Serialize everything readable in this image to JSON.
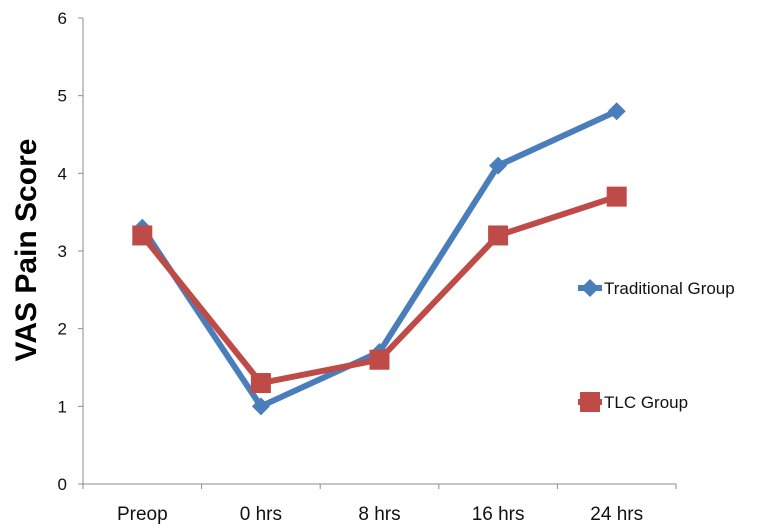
{
  "chart_data": {
    "type": "line",
    "title": "",
    "xlabel": "",
    "ylabel": "VAS Pain Score",
    "categories": [
      "Preop",
      "0 hrs",
      "8 hrs",
      "16 hrs",
      "24 hrs"
    ],
    "ylim": [
      0,
      6
    ],
    "yticks": [
      0,
      1,
      2,
      3,
      4,
      5,
      6
    ],
    "grid": false,
    "legend_position": "right",
    "series": [
      {
        "name": "Traditional Group",
        "values": [
          3.3,
          1.0,
          1.7,
          4.1,
          4.8
        ],
        "color": "#4a7ebb",
        "marker": "diamond"
      },
      {
        "name": "TLC Group",
        "values": [
          3.2,
          1.3,
          1.6,
          3.2,
          3.7
        ],
        "color": "#be4b48",
        "marker": "square"
      }
    ]
  }
}
